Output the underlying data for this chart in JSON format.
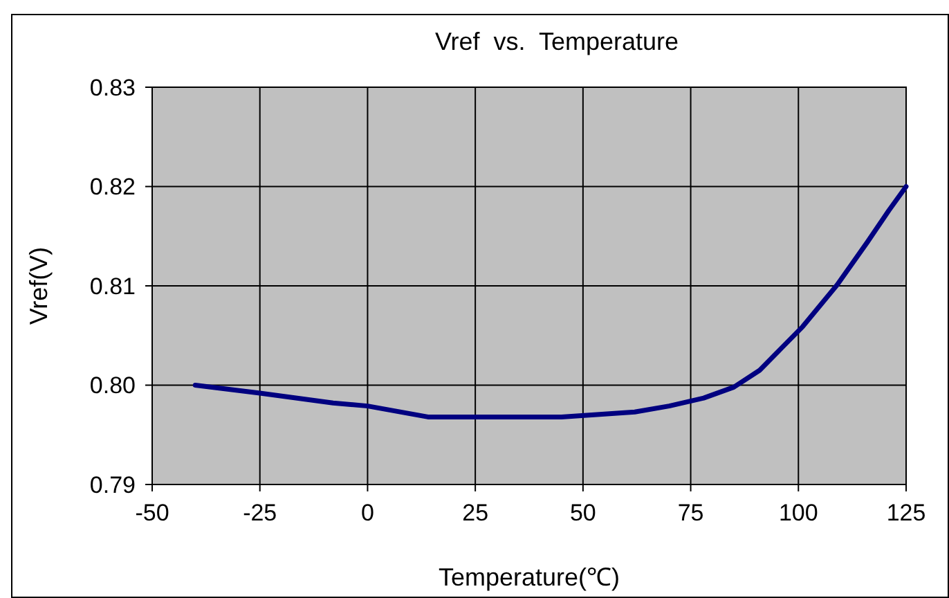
{
  "chart_data": {
    "type": "line",
    "title": "Vref  vs.  Temperature",
    "xlabel": "Temperature(℃)",
    "ylabel": "Vref(V)",
    "series": [
      {
        "color": "#000080",
        "x": [
          -40,
          -25,
          -8,
          0,
          14,
          45,
          62,
          70,
          78,
          85,
          91,
          96,
          101,
          109,
          116,
          121,
          125
        ],
        "values": [
          0.8,
          0.7992,
          0.7982,
          0.7979,
          0.7968,
          0.7968,
          0.7973,
          0.7979,
          0.7987,
          0.7998,
          0.8015,
          0.8037,
          0.8059,
          0.8101,
          0.8144,
          0.8176,
          0.82
        ]
      }
    ],
    "xlim": [
      -50,
      125
    ],
    "xticks": [
      -50,
      -25,
      0,
      25,
      50,
      75,
      100,
      125
    ],
    "ylim": [
      0.79,
      0.83
    ],
    "yticks": [
      {
        "value": 0.79,
        "label": "0.79"
      },
      {
        "value": 0.8,
        "label": "0.80"
      },
      {
        "value": 0.81,
        "label": "0.81"
      },
      {
        "value": 0.82,
        "label": "0.82"
      },
      {
        "value": 0.83,
        "label": "0.83"
      }
    ],
    "grid": true,
    "marker": "none",
    "line_style": "solid"
  }
}
